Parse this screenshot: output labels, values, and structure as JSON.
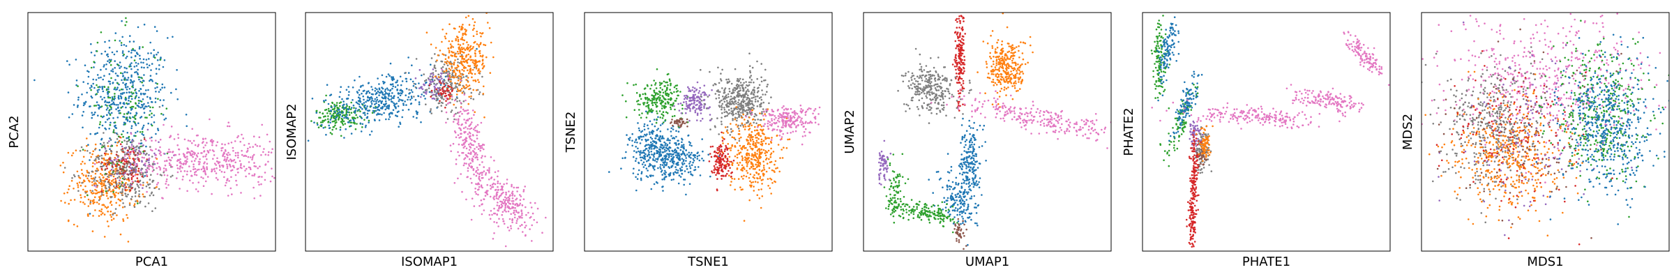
{
  "colors": {
    "blue": "#1f77b4",
    "orange": "#ff7f0e",
    "green": "#2ca02c",
    "red": "#d62728",
    "purple": "#9467bd",
    "brown": "#8c564b",
    "pink": "#e377c2",
    "gray": "#7f7f7f"
  },
  "chart_data": [
    {
      "type": "scatter",
      "title": "",
      "xlabel": "PCA1",
      "ylabel": "PCA2",
      "xlim": [
        0,
        1
      ],
      "ylim": [
        0,
        1
      ],
      "grid": false,
      "legend": "none",
      "series": [
        {
          "color_key": "blue",
          "blobs": [
            {
              "cx": 0.39,
              "cy": 0.66,
              "sx": 0.09,
              "sy": 0.12,
              "rot": 0,
              "n": 500
            }
          ]
        },
        {
          "color_key": "orange",
          "blobs": [
            {
              "cx": 0.31,
              "cy": 0.28,
              "sx": 0.07,
              "sy": 0.08,
              "rot": 0,
              "n": 350
            }
          ]
        },
        {
          "color_key": "gray",
          "blobs": [
            {
              "cx": 0.4,
              "cy": 0.33,
              "sx": 0.08,
              "sy": 0.08,
              "rot": 0,
              "n": 280
            }
          ]
        },
        {
          "color_key": "red",
          "blobs": [
            {
              "cx": 0.4,
              "cy": 0.37,
              "sx": 0.05,
              "sy": 0.05,
              "rot": 0,
              "n": 90
            }
          ]
        },
        {
          "color_key": "purple",
          "blobs": [
            {
              "cx": 0.43,
              "cy": 0.38,
              "sx": 0.05,
              "sy": 0.05,
              "rot": 0,
              "n": 70
            }
          ]
        },
        {
          "color_key": "green",
          "blobs": [
            {
              "cx": 0.38,
              "cy": 0.6,
              "sx": 0.08,
              "sy": 0.15,
              "rot": 0,
              "n": 130
            }
          ]
        },
        {
          "color_key": "brown",
          "blobs": [
            {
              "cx": 0.38,
              "cy": 0.36,
              "sx": 0.04,
              "sy": 0.04,
              "rot": 0,
              "n": 40
            }
          ]
        },
        {
          "color_key": "pink",
          "blobs": [
            {
              "cx": 0.72,
              "cy": 0.38,
              "sx": 0.15,
              "sy": 0.06,
              "rot": 0,
              "n": 450
            }
          ]
        }
      ]
    },
    {
      "type": "scatter",
      "title": "",
      "xlabel": "ISOMAP1",
      "ylabel": "ISOMAP2",
      "xlim": [
        0,
        1
      ],
      "ylim": [
        0,
        1
      ],
      "grid": false,
      "legend": "none",
      "series": [
        {
          "color_key": "green",
          "blobs": [
            {
              "cx": 0.14,
              "cy": 0.57,
              "sx": 0.05,
              "sy": 0.03,
              "rot": 0,
              "n": 180
            }
          ]
        },
        {
          "color_key": "blue",
          "blobs": [
            {
              "cx": 0.3,
              "cy": 0.63,
              "sx": 0.12,
              "sy": 0.05,
              "rot": 15,
              "n": 420
            }
          ]
        },
        {
          "color_key": "gray",
          "blobs": [
            {
              "cx": 0.57,
              "cy": 0.7,
              "sx": 0.06,
              "sy": 0.06,
              "rot": 0,
              "n": 220
            }
          ]
        },
        {
          "color_key": "orange",
          "blobs": [
            {
              "cx": 0.64,
              "cy": 0.8,
              "sx": 0.05,
              "sy": 0.07,
              "rot": 0,
              "n": 320
            }
          ]
        },
        {
          "color_key": "purple",
          "blobs": [
            {
              "cx": 0.52,
              "cy": 0.69,
              "sx": 0.03,
              "sy": 0.03,
              "rot": 0,
              "n": 50
            }
          ]
        },
        {
          "color_key": "red",
          "blobs": [
            {
              "cx": 0.56,
              "cy": 0.67,
              "sx": 0.02,
              "sy": 0.02,
              "rot": 0,
              "n": 40
            }
          ]
        },
        {
          "color_key": "pink",
          "blobs": [
            {
              "cx": 0.67,
              "cy": 0.42,
              "sx": 0.03,
              "sy": 0.12,
              "rot": 15,
              "n": 260
            },
            {
              "cx": 0.82,
              "cy": 0.2,
              "sx": 0.07,
              "sy": 0.04,
              "rot": -45,
              "n": 220
            }
          ]
        }
      ]
    },
    {
      "type": "scatter",
      "title": "",
      "xlabel": "TSNE1",
      "ylabel": "TSNE2",
      "xlim": [
        0,
        1
      ],
      "ylim": [
        0,
        1
      ],
      "grid": false,
      "legend": "none",
      "series": [
        {
          "color_key": "blue",
          "blobs": [
            {
              "cx": 0.28,
              "cy": 0.42,
              "sx": 0.05,
              "sy": 0.06,
              "rot": 0,
              "n": 300
            },
            {
              "cx": 0.38,
              "cy": 0.38,
              "sx": 0.05,
              "sy": 0.05,
              "rot": 0,
              "n": 220
            }
          ]
        },
        {
          "color_key": "green",
          "blobs": [
            {
              "cx": 0.3,
              "cy": 0.64,
              "sx": 0.05,
              "sy": 0.04,
              "rot": 0,
              "n": 220
            }
          ]
        },
        {
          "color_key": "purple",
          "blobs": [
            {
              "cx": 0.45,
              "cy": 0.63,
              "sx": 0.03,
              "sy": 0.03,
              "rot": 0,
              "n": 140
            }
          ]
        },
        {
          "color_key": "gray",
          "blobs": [
            {
              "cx": 0.63,
              "cy": 0.63,
              "sx": 0.05,
              "sy": 0.06,
              "rot": 0,
              "n": 420
            }
          ]
        },
        {
          "color_key": "orange",
          "blobs": [
            {
              "cx": 0.68,
              "cy": 0.41,
              "sx": 0.05,
              "sy": 0.08,
              "rot": 0,
              "n": 380
            }
          ]
        },
        {
          "color_key": "red",
          "blobs": [
            {
              "cx": 0.55,
              "cy": 0.38,
              "sx": 0.02,
              "sy": 0.04,
              "rot": 0,
              "n": 140
            }
          ]
        },
        {
          "color_key": "brown",
          "blobs": [
            {
              "cx": 0.38,
              "cy": 0.54,
              "sx": 0.02,
              "sy": 0.01,
              "rot": 0,
              "n": 40
            }
          ]
        },
        {
          "color_key": "pink",
          "blobs": [
            {
              "cx": 0.82,
              "cy": 0.55,
              "sx": 0.06,
              "sy": 0.03,
              "rot": 0,
              "n": 200
            }
          ]
        }
      ]
    },
    {
      "type": "scatter",
      "title": "",
      "xlabel": "UMAP1",
      "ylabel": "UMAP2",
      "xlim": [
        0,
        1
      ],
      "ylim": [
        0,
        1
      ],
      "grid": false,
      "legend": "none",
      "series": [
        {
          "color_key": "red",
          "blobs": [
            {
              "cx": 0.39,
              "cy": 0.8,
              "sx": 0.01,
              "sy": 0.1,
              "rot": 0,
              "n": 180
            }
          ]
        },
        {
          "color_key": "orange",
          "blobs": [
            {
              "cx": 0.58,
              "cy": 0.77,
              "sx": 0.04,
              "sy": 0.06,
              "rot": 0,
              "n": 300
            }
          ]
        },
        {
          "color_key": "gray",
          "blobs": [
            {
              "cx": 0.27,
              "cy": 0.68,
              "sx": 0.05,
              "sy": 0.05,
              "rot": 0,
              "n": 280
            }
          ]
        },
        {
          "color_key": "pink",
          "blobs": [
            {
              "cx": 0.72,
              "cy": 0.55,
              "sx": 0.17,
              "sy": 0.025,
              "rot": -12,
              "n": 260
            }
          ]
        },
        {
          "color_key": "blue",
          "blobs": [
            {
              "cx": 0.43,
              "cy": 0.37,
              "sx": 0.02,
              "sy": 0.08,
              "rot": 0,
              "n": 200
            },
            {
              "cx": 0.38,
              "cy": 0.22,
              "sx": 0.03,
              "sy": 0.06,
              "rot": 20,
              "n": 160
            }
          ]
        },
        {
          "color_key": "green",
          "blobs": [
            {
              "cx": 0.13,
              "cy": 0.25,
              "sx": 0.02,
              "sy": 0.06,
              "rot": 0,
              "n": 90
            },
            {
              "cx": 0.26,
              "cy": 0.16,
              "sx": 0.06,
              "sy": 0.02,
              "rot": -10,
              "n": 150
            }
          ]
        },
        {
          "color_key": "purple",
          "blobs": [
            {
              "cx": 0.08,
              "cy": 0.37,
              "sx": 0.015,
              "sy": 0.04,
              "rot": 0,
              "n": 60
            }
          ]
        },
        {
          "color_key": "brown",
          "blobs": [
            {
              "cx": 0.39,
              "cy": 0.08,
              "sx": 0.012,
              "sy": 0.025,
              "rot": 0,
              "n": 40
            }
          ]
        }
      ]
    },
    {
      "type": "scatter",
      "title": "",
      "xlabel": "PHATE1",
      "ylabel": "PHATE2",
      "xlim": [
        0,
        1
      ],
      "ylim": [
        0,
        1
      ],
      "grid": false,
      "legend": "none",
      "series": [
        {
          "color_key": "green",
          "blobs": [
            {
              "cx": 0.07,
              "cy": 0.8,
              "sx": 0.015,
              "sy": 0.08,
              "rot": 0,
              "n": 120
            },
            {
              "cx": 0.16,
              "cy": 0.55,
              "sx": 0.015,
              "sy": 0.08,
              "rot": -20,
              "n": 90
            }
          ]
        },
        {
          "color_key": "blue",
          "blobs": [
            {
              "cx": 0.1,
              "cy": 0.83,
              "sx": 0.015,
              "sy": 0.07,
              "rot": -10,
              "n": 110
            },
            {
              "cx": 0.18,
              "cy": 0.62,
              "sx": 0.015,
              "sy": 0.07,
              "rot": -20,
              "n": 110
            }
          ]
        },
        {
          "color_key": "purple",
          "blobs": [
            {
              "cx": 0.21,
              "cy": 0.49,
              "sx": 0.012,
              "sy": 0.03,
              "rot": 0,
              "n": 60
            }
          ]
        },
        {
          "color_key": "gray",
          "blobs": [
            {
              "cx": 0.24,
              "cy": 0.42,
              "sx": 0.015,
              "sy": 0.05,
              "rot": 0,
              "n": 90
            }
          ]
        },
        {
          "color_key": "brown",
          "blobs": [
            {
              "cx": 0.24,
              "cy": 0.4,
              "sx": 0.01,
              "sy": 0.02,
              "rot": 0,
              "n": 30
            }
          ]
        },
        {
          "color_key": "orange",
          "blobs": [
            {
              "cx": 0.25,
              "cy": 0.45,
              "sx": 0.012,
              "sy": 0.03,
              "rot": 0,
              "n": 70
            }
          ]
        },
        {
          "color_key": "red",
          "blobs": [
            {
              "cx": 0.21,
              "cy": 0.32,
              "sx": 0.008,
              "sy": 0.08,
              "rot": 0,
              "n": 120
            },
            {
              "cx": 0.2,
              "cy": 0.12,
              "sx": 0.008,
              "sy": 0.07,
              "rot": 0,
              "n": 100
            }
          ]
        },
        {
          "color_key": "pink",
          "blobs": [
            {
              "cx": 0.48,
              "cy": 0.56,
              "sx": 0.14,
              "sy": 0.018,
              "rot": -3,
              "n": 200
            },
            {
              "cx": 0.75,
              "cy": 0.63,
              "sx": 0.07,
              "sy": 0.02,
              "rot": -12,
              "n": 150
            },
            {
              "cx": 0.9,
              "cy": 0.82,
              "sx": 0.06,
              "sy": 0.015,
              "rot": -50,
              "n": 120
            }
          ]
        }
      ]
    },
    {
      "type": "scatter",
      "title": "",
      "xlabel": "MDS1",
      "ylabel": "MDS2",
      "xlim": [
        0,
        1
      ],
      "ylim": [
        0,
        1
      ],
      "grid": false,
      "legend": "none",
      "series": [
        {
          "color_key": "pink",
          "blobs": [
            {
              "cx": 0.5,
              "cy": 0.72,
              "sx": 0.2,
              "sy": 0.14,
              "rot": 0,
              "n": 500
            }
          ]
        },
        {
          "color_key": "gray",
          "blobs": [
            {
              "cx": 0.3,
              "cy": 0.52,
              "sx": 0.1,
              "sy": 0.13,
              "rot": 0,
              "n": 420
            }
          ]
        },
        {
          "color_key": "orange",
          "blobs": [
            {
              "cx": 0.36,
              "cy": 0.4,
              "sx": 0.11,
              "sy": 0.12,
              "rot": 0,
              "n": 450
            }
          ]
        },
        {
          "color_key": "red",
          "blobs": [
            {
              "cx": 0.4,
              "cy": 0.48,
              "sx": 0.15,
              "sy": 0.15,
              "rot": 0,
              "n": 150
            }
          ]
        },
        {
          "color_key": "purple",
          "blobs": [
            {
              "cx": 0.48,
              "cy": 0.5,
              "sx": 0.16,
              "sy": 0.16,
              "rot": 0,
              "n": 120
            }
          ]
        },
        {
          "color_key": "brown",
          "blobs": [
            {
              "cx": 0.42,
              "cy": 0.45,
              "sx": 0.16,
              "sy": 0.16,
              "rot": 0,
              "n": 100
            }
          ]
        },
        {
          "color_key": "green",
          "blobs": [
            {
              "cx": 0.72,
              "cy": 0.58,
              "sx": 0.1,
              "sy": 0.14,
              "rot": 0,
              "n": 380
            }
          ]
        },
        {
          "color_key": "blue",
          "blobs": [
            {
              "cx": 0.75,
              "cy": 0.52,
              "sx": 0.09,
              "sy": 0.14,
              "rot": 0,
              "n": 500
            }
          ]
        }
      ]
    }
  ]
}
